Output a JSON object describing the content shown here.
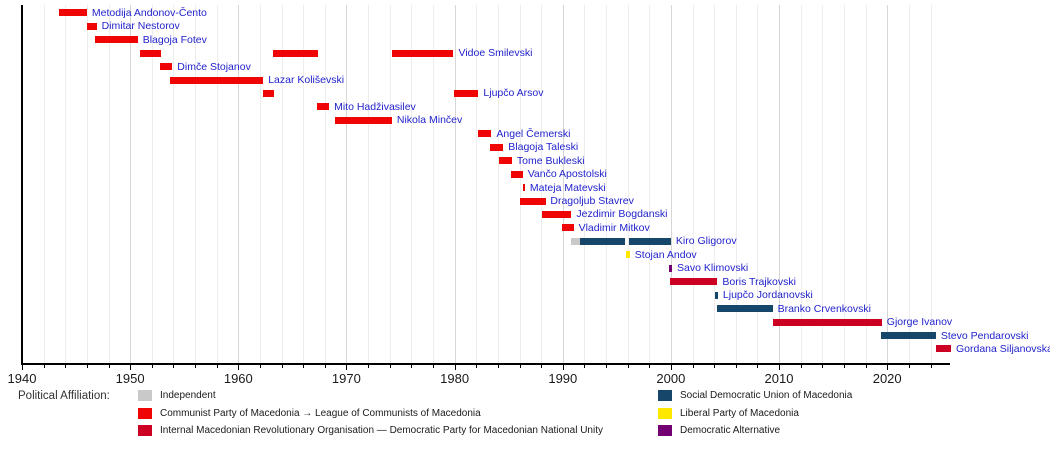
{
  "chart_data": {
    "type": "bar",
    "subtype": "horizontal-timeline-gantt",
    "title": "",
    "xlabel": "",
    "ylabel": "",
    "axis": {
      "start_year": 1940,
      "end_year": 2025.8,
      "decade_labels": [
        1940,
        1950,
        1960,
        1970,
        1980,
        1990,
        2000,
        2010,
        2020
      ],
      "minor_tick_step_years": 2,
      "grid": "on"
    },
    "party_colors": {
      "independent": "#c9c9c9",
      "communist": "#f00505",
      "vmro": "#cc0022",
      "sdsm": "#17466b",
      "liberal": "#ffe800",
      "da": "#720072"
    },
    "label_color": "#2222cc",
    "people": [
      {
        "name": "Metodija Andonov-Čento",
        "segments": [
          {
            "from": 1943.4,
            "to": 1946.0,
            "party": "communist"
          }
        ]
      },
      {
        "name": "Dimitar Nestorov",
        "segments": [
          {
            "from": 1946.0,
            "to": 1946.9,
            "party": "communist"
          }
        ]
      },
      {
        "name": "Blagoja Fotev",
        "segments": [
          {
            "from": 1946.7,
            "to": 1950.7,
            "party": "communist"
          }
        ]
      },
      {
        "name": "Vidoe Smilevski",
        "segments": [
          {
            "from": 1950.9,
            "to": 1952.9,
            "party": "communist"
          },
          {
            "from": 1963.2,
            "to": 1967.4,
            "party": "communist"
          },
          {
            "from": 1974.2,
            "to": 1979.9,
            "party": "communist"
          }
        ]
      },
      {
        "name": "Dimče Stojanov",
        "segments": [
          {
            "from": 1952.8,
            "to": 1953.9,
            "party": "communist"
          }
        ]
      },
      {
        "name": "Lazar Koliševski",
        "segments": [
          {
            "from": 1953.7,
            "to": 1962.3,
            "party": "communist"
          }
        ]
      },
      {
        "name": "Ljupčo Arsov",
        "segments": [
          {
            "from": 1962.3,
            "to": 1963.3,
            "party": "communist"
          },
          {
            "from": 1979.9,
            "to": 1982.2,
            "party": "communist"
          }
        ]
      },
      {
        "name": "Mito Hadživasilev",
        "segments": [
          {
            "from": 1967.3,
            "to": 1968.4,
            "party": "communist"
          }
        ]
      },
      {
        "name": "Nikola Minčev",
        "segments": [
          {
            "from": 1968.9,
            "to": 1974.2,
            "party": "communist"
          }
        ]
      },
      {
        "name": "Angel Čemerski",
        "segments": [
          {
            "from": 1982.2,
            "to": 1983.4,
            "party": "communist"
          }
        ]
      },
      {
        "name": "Blagoja Taleski",
        "segments": [
          {
            "from": 1983.3,
            "to": 1984.5,
            "party": "communist"
          }
        ]
      },
      {
        "name": "Tome Bukleski",
        "segments": [
          {
            "from": 1984.1,
            "to": 1985.3,
            "party": "communist"
          }
        ]
      },
      {
        "name": "Vančo Apostolski",
        "segments": [
          {
            "from": 1985.2,
            "to": 1986.3,
            "party": "communist"
          }
        ]
      },
      {
        "name": "Mateja Matevski",
        "segments": [
          {
            "from": 1986.3,
            "to": 1986.5,
            "party": "communist"
          }
        ]
      },
      {
        "name": "Dragoljub Stavrev",
        "segments": [
          {
            "from": 1986.0,
            "to": 1988.4,
            "party": "communist"
          }
        ]
      },
      {
        "name": "Jezdimir Bogdanski",
        "segments": [
          {
            "from": 1988.1,
            "to": 1990.8,
            "party": "communist"
          }
        ]
      },
      {
        "name": "Vladimir Mitkov",
        "segments": [
          {
            "from": 1989.9,
            "to": 1991.0,
            "party": "communist"
          }
        ]
      },
      {
        "name": "Kiro Gligorov",
        "segments": [
          {
            "from": 1990.8,
            "to": 1991.6,
            "party": "independent"
          },
          {
            "from": 1991.6,
            "to": 1995.75,
            "party": "sdsm"
          },
          {
            "from": 1996.1,
            "to": 2000.0,
            "party": "sdsm"
          }
        ]
      },
      {
        "name": "Stojan Andov",
        "segments": [
          {
            "from": 1995.8,
            "to": 1996.2,
            "party": "liberal"
          }
        ]
      },
      {
        "name": "Savo Klimovski",
        "segments": [
          {
            "from": 1999.8,
            "to": 2000.1,
            "party": "da"
          }
        ]
      },
      {
        "name": "Boris Trajkovski",
        "segments": [
          {
            "from": 1999.9,
            "to": 2004.3,
            "party": "vmro"
          }
        ]
      },
      {
        "name": "Ljupčo Jordanovski",
        "segments": [
          {
            "from": 2004.05,
            "to": 2004.35,
            "party": "sdsm"
          }
        ]
      },
      {
        "name": "Branko Crvenkovski",
        "segments": [
          {
            "from": 2004.3,
            "to": 2009.4,
            "party": "sdsm"
          }
        ]
      },
      {
        "name": "Gjorge Ivanov",
        "segments": [
          {
            "from": 2009.4,
            "to": 2019.5,
            "party": "vmro"
          }
        ]
      },
      {
        "name": "Stevo Pendarovski",
        "segments": [
          {
            "from": 2019.4,
            "to": 2024.5,
            "party": "sdsm"
          }
        ]
      },
      {
        "name": "Gordana Siljanovska",
        "segments": [
          {
            "from": 2024.5,
            "to": 2025.9,
            "party": "vmro"
          }
        ]
      }
    ]
  },
  "legend": {
    "title": "Political Affiliation:",
    "left_items": [
      {
        "party": "independent",
        "label": "Independent"
      },
      {
        "party": "communist",
        "label": "Communist Party of Macedonia → League of Communists of Macedonia"
      },
      {
        "party": "vmro",
        "label": "Internal Macedonian Revolutionary Organisation — Democratic Party for Macedonian National Unity"
      }
    ],
    "right_items": [
      {
        "party": "sdsm",
        "label": "Social Democratic Union of Macedonia"
      },
      {
        "party": "liberal",
        "label": "Liberal Party of Macedonia"
      },
      {
        "party": "da",
        "label": "Democratic Alternative"
      }
    ]
  }
}
